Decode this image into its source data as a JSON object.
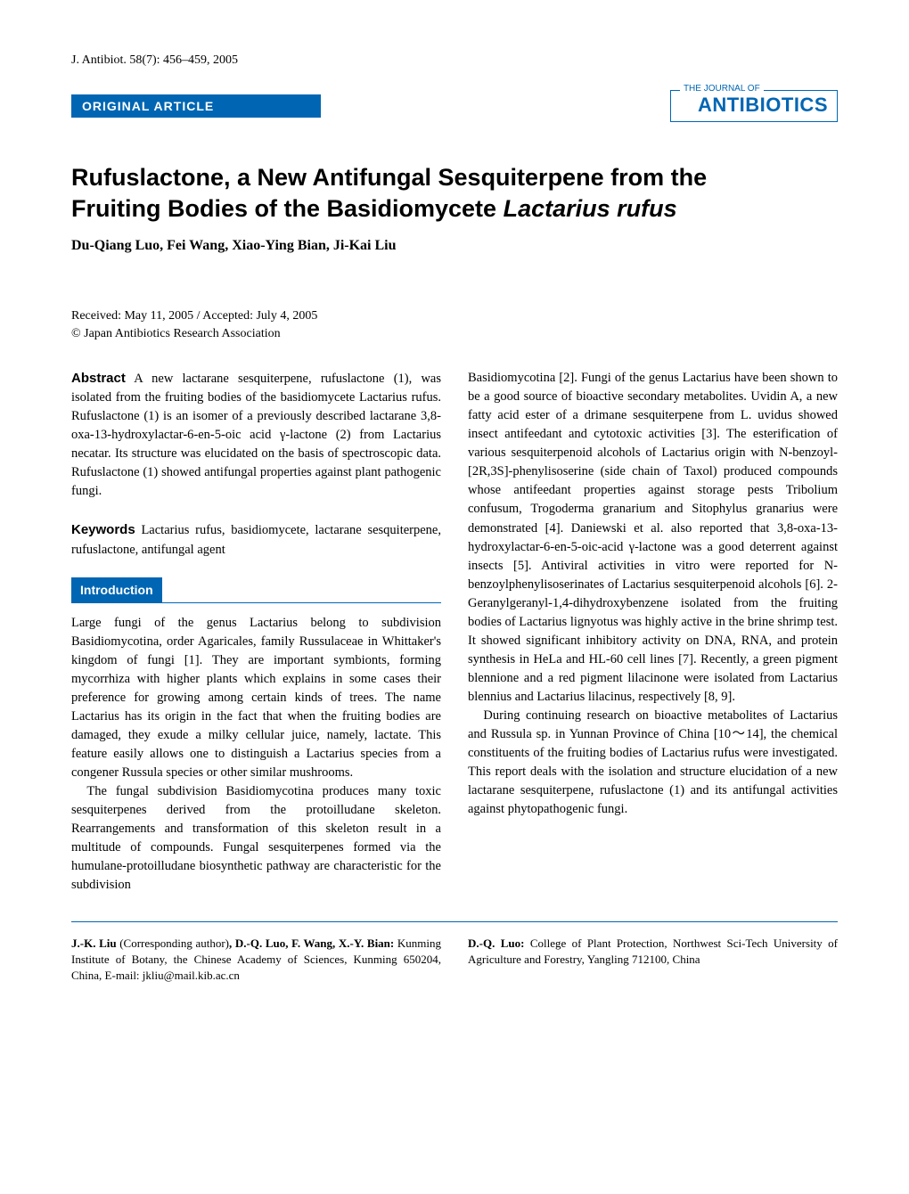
{
  "header": {
    "citation": "J. Antibiot. 58(7): 456–459, 2005",
    "article_tag": "ORIGINAL ARTICLE",
    "journal_prefix": "THE JOURNAL OF",
    "journal_name": "ANTIBIOTICS"
  },
  "title": {
    "line1": "Rufuslactone, a New Antifungal Sesquiterpene from the",
    "line2_prefix": "Fruiting Bodies of the Basidiomycete ",
    "line2_italic": "Lactarius rufus"
  },
  "authors": "Du-Qiang Luo, Fei Wang, Xiao-Ying Bian, Ji-Kai Liu",
  "dates": {
    "received": "Received: May 11, 2005 / Accepted: July 4, 2005",
    "copyright": "© Japan Antibiotics Research Association"
  },
  "abstract": {
    "label": "Abstract",
    "text": " A new lactarane sesquiterpene, rufuslactone (1), was isolated from the fruiting bodies of the basidiomycete Lactarius rufus. Rufuslactone (1) is an isomer of a previously described lactarane 3,8-oxa-13-hydroxylactar-6-en-5-oic acid γ-lactone (2) from Lactarius necatar. Its structure was elucidated on the basis of spectroscopic data. Rufuslactone (1) showed antifungal properties against plant pathogenic fungi."
  },
  "keywords": {
    "label": "Keywords",
    "text": " Lactarius rufus, basidiomycete, lactarane sesquiterpene, rufuslactone, antifungal agent"
  },
  "sections": {
    "introduction": {
      "header": "Introduction",
      "p1": "Large fungi of the genus Lactarius belong to subdivision Basidiomycotina, order Agaricales, family Russulaceae in Whittaker's kingdom of fungi [1]. They are important symbionts, forming mycorrhiza with higher plants which explains in some cases their preference for growing among certain kinds of trees. The name Lactarius has its origin in the fact that when the fruiting bodies are damaged, they exude a milky cellular juice, namely, lactate. This feature easily allows one to distinguish a Lactarius species from a congener Russula species or other similar mushrooms.",
      "p2": "The fungal subdivision Basidiomycotina produces many toxic sesquiterpenes derived from the protoilludane skeleton. Rearrangements and transformation of this skeleton result in a multitude of compounds. Fungal sesquiterpenes formed via the humulane-protoilludane biosynthetic pathway are characteristic for the subdivision"
    },
    "right_col": {
      "p1": "Basidiomycotina [2]. Fungi of the genus Lactarius have been shown to be a good source of bioactive secondary metabolites. Uvidin A, a new fatty acid ester of a drimane sesquiterpene from L. uvidus showed insect antifeedant and cytotoxic activities [3]. The esterification of various sesquiterpenoid alcohols of Lactarius origin with N-benzoyl-[2R,3S]-phenylisoserine (side chain of Taxol) produced compounds whose antifeedant properties against storage pests Tribolium confusum, Trogoderma granarium and Sitophylus granarius were demonstrated [4]. Daniewski et al. also reported that 3,8-oxa-13-hydroxylactar-6-en-5-oic-acid γ-lactone was a good deterrent against insects [5]. Antiviral activities in vitro were reported for N-benzoylphenylisoserinates of Lactarius sesquiterpenoid alcohols [6]. 2-Geranylgeranyl-1,4-dihydroxybenzene isolated from the fruiting bodies of Lactarius lignyotus was highly active in the brine shrimp test. It showed significant inhibitory activity on DNA, RNA, and protein synthesis in HeLa and HL-60 cell lines [7]. Recently, a green pigment blennione and a red pigment lilacinone were isolated from Lactarius blennius and Lactarius lilacinus, respectively [8, 9].",
      "p2": "During continuing research on bioactive metabolites of Lactarius and Russula sp. in Yunnan Province of China [10～14], the chemical constituents of the fruiting bodies of Lactarius rufus were investigated. This report deals with the isolation and structure elucidation of a new lactarane sesquiterpene, rufuslactone (1) and its antifungal activities against phytopathogenic fungi."
    }
  },
  "footer": {
    "left": {
      "bold1": "J.-K. Liu ",
      "plain1": "(Corresponding author)",
      "bold2": ", D.-Q. Luo, F. Wang, X.-Y. Bian: ",
      "plain2": "Kunming Institute of Botany, the Chinese Academy of Sciences, Kunming 650204, China, E-mail: jkliu@mail.kib.ac.cn"
    },
    "right": {
      "bold": "D.-Q. Luo: ",
      "plain": "College of Plant Protection, Northwest Sci-Tech University of Agriculture and Forestry, Yangling 712100, China"
    }
  },
  "colors": {
    "primary_blue": "#0066b3",
    "text": "#000000",
    "background": "#ffffff"
  },
  "typography": {
    "body_font": "Times New Roman",
    "heading_font": "Arial",
    "title_fontsize": 27,
    "body_fontsize": 14.5,
    "author_fontsize": 16,
    "tag_fontsize": 14
  }
}
